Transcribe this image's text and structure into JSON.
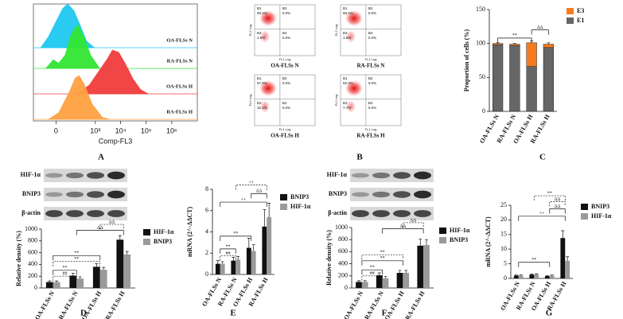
{
  "figure_labels": [
    "A",
    "B",
    "C",
    "D",
    "E",
    "F",
    "G"
  ],
  "flow_plots": [
    {
      "title": "OA-FLSs N",
      "xlabel": "FL1 Log",
      "ylabel": "FL2 Log",
      "quadrants": [
        {
          "name": "B1",
          "value": "98.2%"
        },
        {
          "name": "B2",
          "value": "0.0%"
        },
        {
          "name": "B3",
          "value": "1.8%"
        },
        {
          "name": "B4",
          "value": "0.0%"
        }
      ]
    },
    {
      "title": "RA-FLSs N",
      "xlabel": "FL1 Log",
      "ylabel": "FL2 Log",
      "quadrants": [
        {
          "name": "B1",
          "value": "98.2%"
        },
        {
          "name": "B2",
          "value": "0.0%"
        },
        {
          "name": "B3",
          "value": "1.8%"
        },
        {
          "name": "B4",
          "value": "0.0%"
        }
      ]
    },
    {
      "title": "OA-FLSs H",
      "xlabel": "FL1 Log",
      "ylabel": "FL2 Log",
      "quadrants": [
        {
          "name": "B1",
          "value": "67.9%"
        },
        {
          "name": "B2",
          "value": "0.0%"
        },
        {
          "name": "B3",
          "value": "32.1%"
        },
        {
          "name": "B4",
          "value": "0.0%"
        }
      ]
    },
    {
      "title": "RA-FLSs H",
      "xlabel": "FL1 Log",
      "ylabel": "FL2 Log",
      "quadrants": [
        {
          "name": "B1",
          "value": "92.3%"
        },
        {
          "name": "B2",
          "value": "0.0%"
        },
        {
          "name": "B3",
          "value": "7.7%"
        },
        {
          "name": "B4",
          "value": "0.0%"
        }
      ]
    }
  ],
  "blots": [
    [
      "HIF-1α",
      "BNIP3",
      "β-actin"
    ],
    [
      "HIF-1α",
      "BNIP3",
      "β-actin"
    ]
  ],
  "chart_data": [
    {
      "type": "histogram-overlay",
      "xlabel": "Comp-FL3",
      "xlim": [
        -200,
        10000000
      ],
      "xticks": [
        {
          "value": 0,
          "label": "0"
        },
        {
          "value": 1000,
          "label": "10³"
        },
        {
          "value": 10000,
          "label": "10⁴"
        },
        {
          "value": 100000,
          "label": "10⁵"
        },
        {
          "value": 1000000,
          "label": "10⁶"
        }
      ],
      "ylim": [
        0,
        100
      ],
      "series": [
        {
          "name": "OA-FLSs N",
          "color": "#1ec8f0",
          "x": [
            -90,
            -30,
            0,
            25,
            55,
            120,
            240,
            440,
            920
          ],
          "values": [
            0,
            25,
            60,
            90,
            100,
            85,
            50,
            15,
            0
          ]
        },
        {
          "name": "RA-FLSs N",
          "color": "#33e633",
          "x": [
            -45,
            -8,
            8,
            37,
            90,
            180,
            350,
            650,
            1500
          ],
          "values": [
            0,
            20,
            12,
            30,
            80,
            100,
            70,
            30,
            0
          ]
        },
        {
          "name": "OA-FLSs H",
          "color": "#f03c3c",
          "x": [
            160,
            570,
            1500,
            3000,
            4750,
            8400,
            15000,
            30000,
            60000,
            120000
          ],
          "values": [
            0,
            20,
            55,
            80,
            100,
            95,
            70,
            35,
            10,
            0
          ]
        },
        {
          "name": "RA-FLSs H",
          "color": "#ffa040",
          "x": [
            -30,
            8,
            65,
            140,
            210,
            350,
            740,
            1870,
            3750
          ],
          "values": [
            0,
            15,
            60,
            95,
            100,
            80,
            35,
            5,
            0
          ]
        }
      ]
    },
    {
      "type": "stacked-bar",
      "ylabel": "Proportion of cells (%)",
      "categories": [
        "OA-FLSs N",
        "RA-FLSs N",
        "OA-FLSs H",
        "RA-FLSs H"
      ],
      "ylim": [
        0,
        150
      ],
      "yticks": [
        0,
        50,
        100,
        150
      ],
      "series": [
        {
          "name": "E3",
          "color": "#f47b20",
          "values": [
            2,
            2,
            35,
            5
          ],
          "errors": [
            1,
            1,
            3,
            2
          ]
        },
        {
          "name": "E1",
          "color": "#666666",
          "values": [
            98,
            97,
            66,
            94
          ],
          "errors": [
            1,
            1,
            3,
            2
          ]
        }
      ],
      "annotations": [
        "**",
        "ΔΔ"
      ]
    },
    {
      "type": "grouped-bar",
      "ylabel": "Relative density (%)",
      "categories": [
        "OA-FLSs N",
        "RA-FLSs N",
        "OA-FLSs H",
        "RA-FLSs H"
      ],
      "ylim": [
        0,
        1000
      ],
      "yticks": [
        0,
        200,
        400,
        600,
        800,
        1000
      ],
      "series": [
        {
          "name": "HIF-1α",
          "color": "#111111",
          "values": [
            100,
            210,
            360,
            820
          ],
          "errors": [
            20,
            40,
            50,
            70
          ]
        },
        {
          "name": "BNIP3",
          "color": "#9a9a9a",
          "values": [
            100,
            160,
            310,
            570
          ],
          "errors": [
            20,
            30,
            40,
            50
          ]
        }
      ],
      "annotations": [
        "**",
        "##",
        "**",
        "**",
        "ΔΔ",
        "ΔΔ"
      ]
    },
    {
      "type": "grouped-bar",
      "ylabel": "mRNA (2^-ΔΔCT)",
      "categories": [
        "OA-FLSs N",
        "RA-FLSs N",
        "OA-FLSs H",
        "RA-FLSs H"
      ],
      "ylim": [
        0,
        8
      ],
      "yticks": [
        0,
        2,
        4,
        6,
        8
      ],
      "series": [
        {
          "name": "BNIP3",
          "color": "#111111",
          "values": [
            1.0,
            1.3,
            2.5,
            4.5
          ],
          "errors": [
            0.3,
            0.3,
            0.9,
            1.6
          ]
        },
        {
          "name": "HIF-1α",
          "color": "#9a9a9a",
          "values": [
            1.0,
            1.4,
            2.2,
            5.4
          ],
          "errors": [
            0.2,
            0.3,
            0.6,
            1.3
          ]
        }
      ],
      "annotations": [
        "**",
        "##",
        "**",
        "++",
        "ΔΔ",
        "++"
      ]
    },
    {
      "type": "grouped-bar",
      "ylabel": "Relative density (%)",
      "categories": [
        "OA-FLSs N",
        "RA-FLSs N",
        "OA-FLSs H",
        "RA-FLSs H"
      ],
      "ylim": [
        0,
        1000
      ],
      "yticks": [
        0,
        200,
        400,
        600,
        800,
        1000
      ],
      "series": [
        {
          "name": "HIF-1α",
          "color": "#111111",
          "values": [
            100,
            210,
            250,
            700
          ],
          "errors": [
            20,
            40,
            40,
            110
          ]
        },
        {
          "name": "BNIP3",
          "color": "#9a9a9a",
          "values": [
            100,
            160,
            250,
            710
          ],
          "errors": [
            20,
            30,
            40,
            90
          ]
        }
      ],
      "annotations": [
        "**",
        "##",
        "**",
        "**",
        "ΔΔ",
        "ΔΔ"
      ]
    },
    {
      "type": "grouped-bar",
      "ylabel": "mRNA (2^-ΔΔCT)",
      "categories": [
        "OA-FLSs N",
        "RA-FLSs N",
        "OA-FLSs H",
        "RA-FLSs H"
      ],
      "ylim": [
        0,
        25
      ],
      "yticks": [
        0,
        5,
        10,
        15,
        20,
        25
      ],
      "series": [
        {
          "name": "BNIP3",
          "color": "#111111",
          "values": [
            1.0,
            1.3,
            0.8,
            13.8
          ],
          "errors": [
            0.2,
            0.2,
            0.2,
            2.5
          ]
        },
        {
          "name": "HIF-1α",
          "color": "#9a9a9a",
          "values": [
            1.0,
            1.4,
            1.0,
            6.0
          ],
          "errors": [
            0.2,
            0.2,
            0.2,
            1.4
          ]
        }
      ],
      "annotations": [
        "**",
        "++",
        "ΔΔ",
        "ΔΔ",
        "**"
      ]
    }
  ]
}
